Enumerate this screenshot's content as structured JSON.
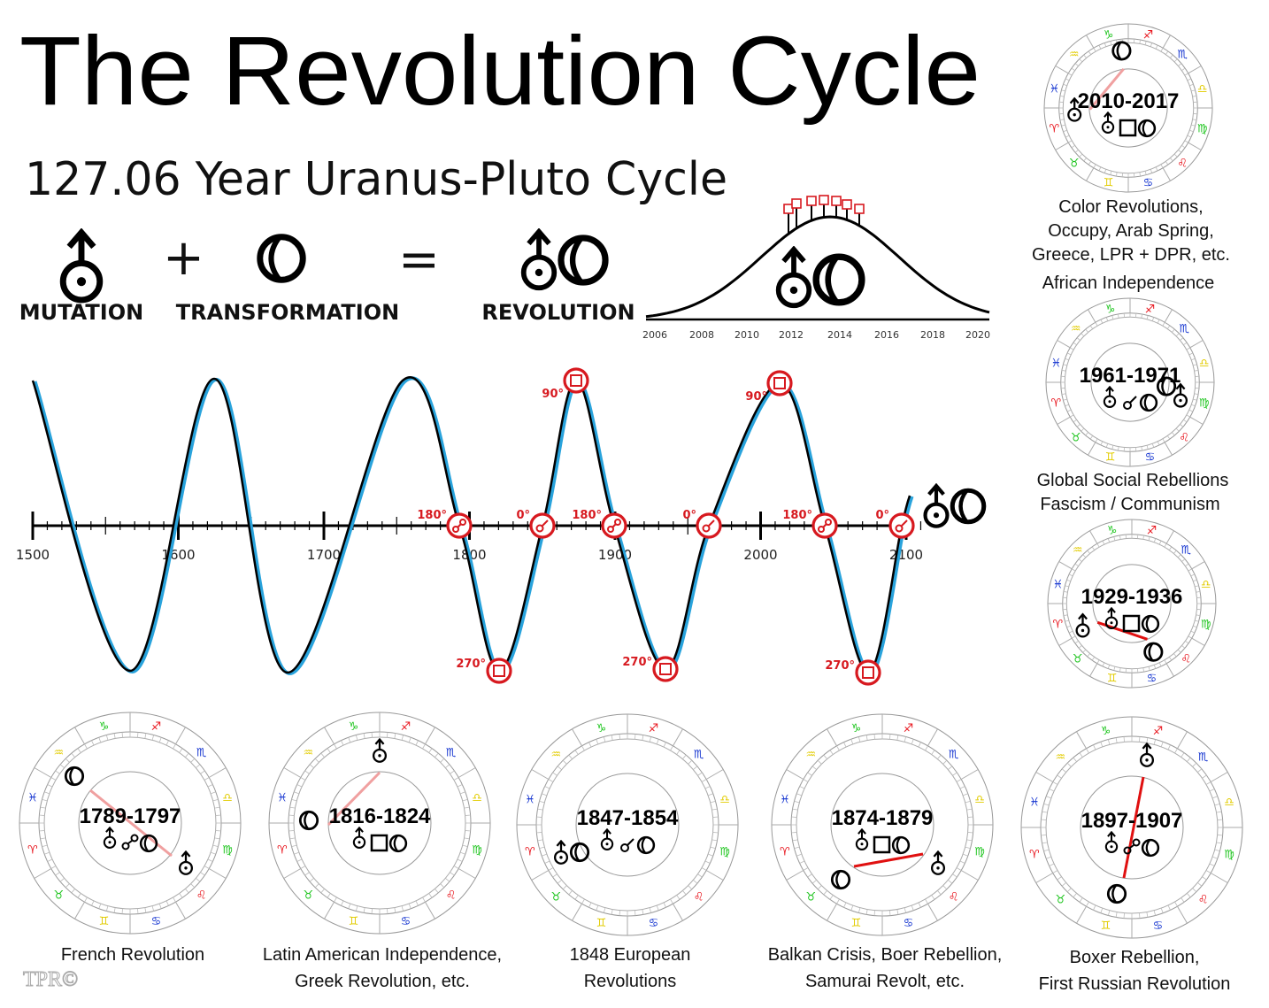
{
  "title": "The Revolution Cycle",
  "subtitle": "127.06 Year Uranus-Pluto Cycle",
  "equation": {
    "plus": "+",
    "equals": "=",
    "labels": [
      "MUTATION",
      "TRANSFORMATION",
      "REVOLUTION"
    ],
    "icons": [
      "uranus-icon",
      "pluto-icon",
      "uranus-pluto-icon"
    ]
  },
  "bell_chart": {
    "ticks": [
      "2006",
      "2008",
      "2010",
      "2012",
      "2014",
      "2016",
      "2018",
      "2020"
    ],
    "square_markers": 7
  },
  "cycle_chart": {
    "axis_ticks": [
      "1500",
      "1600",
      "1700",
      "1800",
      "1900",
      "2000",
      "2100"
    ],
    "aspect_markers": [
      {
        "label": "180°",
        "aspect": "opposition"
      },
      {
        "label": "0°",
        "aspect": "conjunction"
      },
      {
        "label": "90°",
        "aspect": "square"
      },
      {
        "label": "270°",
        "aspect": "square"
      },
      {
        "label": "180°",
        "aspect": "opposition"
      },
      {
        "label": "0°",
        "aspect": "conjunction"
      },
      {
        "label": "90°",
        "aspect": "square"
      },
      {
        "label": "270°",
        "aspect": "square"
      },
      {
        "label": "180°",
        "aspect": "opposition"
      },
      {
        "label": "0°",
        "aspect": "conjunction"
      },
      {
        "label": "270°",
        "aspect": "square"
      }
    ],
    "colors": {
      "curve": "#000000",
      "curve_shadow": "#29a3dc",
      "marker": "#d7191f"
    }
  },
  "zodiac": {
    "signs": [
      "♈",
      "♉",
      "♊",
      "♋",
      "♌",
      "♍",
      "♎",
      "♏",
      "♐",
      "♑",
      "♒",
      "♓"
    ],
    "colors": {
      "fire": "#e8141c",
      "earth": "#1cc41c",
      "air": "#e2cc00",
      "water": "#1434d0"
    }
  },
  "wheels": [
    {
      "years": "2010-2017",
      "aspect": "square",
      "captions_above": [],
      "captions": [
        "Color Revolutions,",
        "Occupy, Arab Spring,",
        "Greece, LPR + DPR, etc."
      ]
    },
    {
      "years": "1961-1971",
      "aspect": "conjunction",
      "captions_above": [
        "African Independence"
      ],
      "captions": [
        "Global Social Rebellions"
      ]
    },
    {
      "years": "1929-1936",
      "aspect": "square",
      "captions_above": [
        "Fascism / Communism"
      ],
      "captions": []
    },
    {
      "years": "1789-1797",
      "aspect": "opposition",
      "captions_above": [],
      "captions": [
        "French Revolution"
      ]
    },
    {
      "years": "1816-1824",
      "aspect": "square",
      "captions_above": [],
      "captions": [
        "Latin American Independence,",
        "Greek Revolution, etc."
      ]
    },
    {
      "years": "1847-1854",
      "aspect": "conjunction",
      "captions_above": [],
      "captions": [
        "1848 European",
        "Revolutions"
      ]
    },
    {
      "years": "1874-1879",
      "aspect": "square",
      "captions_above": [],
      "captions": [
        "Balkan Crisis, Boer Rebellion,",
        "Samurai Revolt, etc."
      ]
    },
    {
      "years": "1897-1907",
      "aspect": "opposition",
      "captions_above": [],
      "captions": [
        "Boxer Rebellion,",
        "First Russian Revolution"
      ]
    }
  ],
  "watermark": "TPR©"
}
